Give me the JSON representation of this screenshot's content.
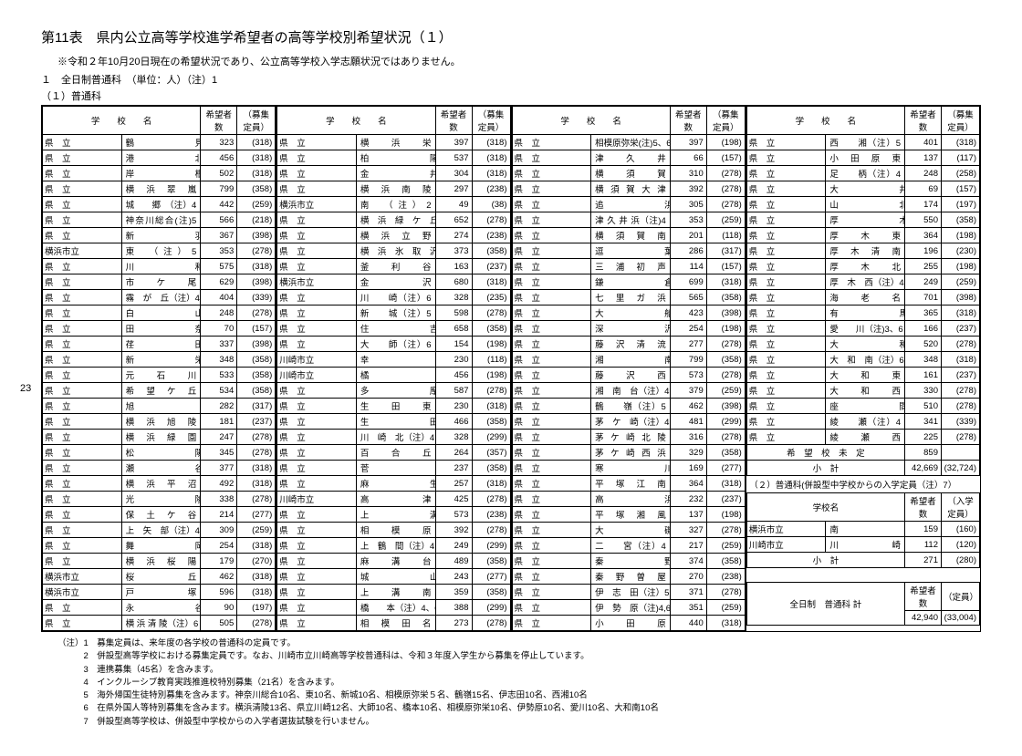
{
  "title": "第11表　県内公立高等学校進学希望者の高等学校別希望状況（１）",
  "subtitle": "※令和２年10月20日現在の希望状況であり、公立高等学校入学志願状況ではありません。",
  "section1": "１　全日制普通科　（単位：人）（注）1",
  "section2": "（１）普通科",
  "page_number": "23",
  "headers": {
    "school": "学　　校　　名",
    "applicants": "希望者数",
    "capacity": "（募集定員）"
  },
  "cols": [
    [
      {
        "p": "県　立",
        "n": "鶴　　　　　　　見",
        "a": "323",
        "c": "(318)"
      },
      {
        "p": "県　立",
        "n": "港　　　　　　　北",
        "a": "456",
        "c": "(318)"
      },
      {
        "p": "県　立",
        "n": "岸　　　　　　　根",
        "a": "502",
        "c": "(318)"
      },
      {
        "p": "県　立",
        "n": "横　浜　翠　嵐",
        "a": "799",
        "c": "(358)"
      },
      {
        "p": "県　立",
        "n": "城　　郷　（注）4",
        "a": "442",
        "c": "(259)"
      },
      {
        "p": "県　立",
        "n": "神奈川総合(注)5",
        "a": "566",
        "c": "(218)"
      },
      {
        "p": "県　立",
        "n": "新　　　　　　　羽",
        "a": "367",
        "c": "(398)"
      },
      {
        "p": "横浜市立",
        "n": "東　（注）5",
        "a": "353",
        "c": "(278)"
      },
      {
        "p": "県　立",
        "n": "川　　　　　　　和",
        "a": "575",
        "c": "(318)"
      },
      {
        "p": "県　立",
        "n": "市　　ケ　　尾",
        "a": "629",
        "c": "(398)"
      },
      {
        "p": "県　立",
        "n": "霧　が　丘（注）4",
        "a": "404",
        "c": "(339)"
      },
      {
        "p": "県　立",
        "n": "白　　　　　　　山",
        "a": "248",
        "c": "(278)"
      },
      {
        "p": "県　立",
        "n": "田　　　　　　　奈",
        "a": "70",
        "c": "(157)"
      },
      {
        "p": "県　立",
        "n": "荏　　　　　　　田",
        "a": "337",
        "c": "(398)"
      },
      {
        "p": "県　立",
        "n": "新　　　　　　　栄",
        "a": "348",
        "c": "(358)"
      },
      {
        "p": "県　立",
        "n": "元　　石　　川",
        "a": "533",
        "c": "(358)"
      },
      {
        "p": "県　立",
        "n": "希　望　ケ　丘",
        "a": "534",
        "c": "(358)"
      },
      {
        "p": "県　立",
        "n": "旭",
        "a": "282",
        "c": "(317)"
      },
      {
        "p": "県　立",
        "n": "横　浜　旭　陵",
        "a": "181",
        "c": "(237)"
      },
      {
        "p": "県　立",
        "n": "横　浜　緑　園",
        "a": "247",
        "c": "(278)"
      },
      {
        "p": "県　立",
        "n": "松　　　　　　　陽",
        "a": "345",
        "c": "(278)"
      },
      {
        "p": "県　立",
        "n": "瀬　　　　　　　谷",
        "a": "377",
        "c": "(318)"
      },
      {
        "p": "県　立",
        "n": "横　浜　平　沼",
        "a": "492",
        "c": "(318)"
      },
      {
        "p": "県　立",
        "n": "光　　　　　　　陵",
        "a": "338",
        "c": "(278)"
      },
      {
        "p": "県　立",
        "n": "保　土　ケ　谷",
        "a": "214",
        "c": "(277)"
      },
      {
        "p": "県　立",
        "n": "上　矢　部（注）4",
        "a": "309",
        "c": "(259)"
      },
      {
        "p": "県　立",
        "n": "舞　　　　　　　岡",
        "a": "254",
        "c": "(318)"
      },
      {
        "p": "県　立",
        "n": "横　浜　桜　陽",
        "a": "179",
        "c": "(270)"
      },
      {
        "p": "横浜市立",
        "n": "桜　　　　　　丘",
        "a": "462",
        "c": "(318)"
      },
      {
        "p": "横浜市立",
        "n": "戸　　　　　　塚",
        "a": "596",
        "c": "(318)"
      },
      {
        "p": "県　立",
        "n": "永　　　　　　　谷",
        "a": "90",
        "c": "(197)"
      },
      {
        "p": "県　立",
        "n": "横 浜 清 陵（注）6",
        "a": "505",
        "c": "(278)"
      }
    ],
    [
      {
        "p": "県　立",
        "n": "横　　浜　　栄",
        "a": "397",
        "c": "(318)"
      },
      {
        "p": "県　立",
        "n": "柏　　　　　　　陽",
        "a": "537",
        "c": "(318)"
      },
      {
        "p": "県　立",
        "n": "金　　　　　　　井",
        "a": "304",
        "c": "(318)"
      },
      {
        "p": "県　立",
        "n": "横　浜　南　陵",
        "a": "297",
        "c": "(238)"
      },
      {
        "p": "横浜市立",
        "n": "南　（注）2",
        "a": "49",
        "c": "(38)"
      },
      {
        "p": "県　立",
        "n": "横　浜　緑　ケ　丘",
        "a": "652",
        "c": "(278)"
      },
      {
        "p": "県　立",
        "n": "横　浜　立　野",
        "a": "274",
        "c": "(238)"
      },
      {
        "p": "県　立",
        "n": "横　浜　氷　取　沢",
        "a": "373",
        "c": "(358)"
      },
      {
        "p": "県　立",
        "n": "釜　　利　　谷",
        "a": "163",
        "c": "(237)"
      },
      {
        "p": "横浜市立",
        "n": "金　　　　　　沢",
        "a": "680",
        "c": "(318)"
      },
      {
        "p": "県　立",
        "n": "川　　崎（注）6",
        "a": "328",
        "c": "(235)"
      },
      {
        "p": "県　立",
        "n": "新　　城（注）5",
        "a": "598",
        "c": "(278)"
      },
      {
        "p": "県　立",
        "n": "住　　　　　　　吉",
        "a": "658",
        "c": "(358)"
      },
      {
        "p": "県　立",
        "n": "大　　師（注）6",
        "a": "154",
        "c": "(198)"
      },
      {
        "p": "川崎市立",
        "n": "幸",
        "a": "230",
        "c": "(118)"
      },
      {
        "p": "川崎市立",
        "n": "橘",
        "a": "456",
        "c": "(198)"
      },
      {
        "p": "県　立",
        "n": "多　　　　　　　摩",
        "a": "587",
        "c": "(278)"
      },
      {
        "p": "県　立",
        "n": "生　　田　　東",
        "a": "230",
        "c": "(318)"
      },
      {
        "p": "県　立",
        "n": "生　　　　　　　田",
        "a": "466",
        "c": "(358)"
      },
      {
        "p": "県　立",
        "n": "川　崎　北（注）4",
        "a": "328",
        "c": "(299)"
      },
      {
        "p": "県　立",
        "n": "百　　合　　丘",
        "a": "264",
        "c": "(357)"
      },
      {
        "p": "県　立",
        "n": "菅",
        "a": "237",
        "c": "(358)"
      },
      {
        "p": "県　立",
        "n": "麻　　　　　　　生",
        "a": "257",
        "c": "(318)"
      },
      {
        "p": "川崎市立",
        "n": "高　　　　　　津",
        "a": "425",
        "c": "(278)"
      },
      {
        "p": "県　立",
        "n": "上　　　　　　　溝",
        "a": "573",
        "c": "(238)"
      },
      {
        "p": "県　立",
        "n": "相　　模　　原",
        "a": "392",
        "c": "(278)"
      },
      {
        "p": "県　立",
        "n": "上　鶴　間（注）4",
        "a": "249",
        "c": "(299)"
      },
      {
        "p": "県　立",
        "n": "麻　　溝　　台",
        "a": "489",
        "c": "(358)"
      },
      {
        "p": "県　立",
        "n": "城　　　　　　　山",
        "a": "243",
        "c": "(277)"
      },
      {
        "p": "県　立",
        "n": "上　　溝　　南",
        "a": "359",
        "c": "(358)"
      },
      {
        "p": "県　立",
        "n": "橋　　本（注）4、6",
        "a": "388",
        "c": "(299)"
      },
      {
        "p": "県　立",
        "n": "相　模　田　名",
        "a": "273",
        "c": "(278)"
      }
    ],
    [
      {
        "p": "県　立",
        "n": "相模原弥栄(注)5、6",
        "a": "397",
        "c": "(198)"
      },
      {
        "p": "県　立",
        "n": "津　　久　　井",
        "a": "66",
        "c": "(157)"
      },
      {
        "p": "県　立",
        "n": "横　　須　　賀",
        "a": "310",
        "c": "(278)"
      },
      {
        "p": "県　立",
        "n": "横 須 賀 大 津",
        "a": "392",
        "c": "(278)"
      },
      {
        "p": "県　立",
        "n": "追　　　　　　　浜",
        "a": "305",
        "c": "(278)"
      },
      {
        "p": "県　立",
        "n": "津 久 井 浜（注)4",
        "a": "353",
        "c": "(259)"
      },
      {
        "p": "県　立",
        "n": "横　須　賀　南",
        "a": "201",
        "c": "(118)"
      },
      {
        "p": "県　立",
        "n": "逗　　　　　　　葉",
        "a": "286",
        "c": "(317)"
      },
      {
        "p": "県　立",
        "n": "三　浦　初　声",
        "a": "114",
        "c": "(157)"
      },
      {
        "p": "県　立",
        "n": "鎌　　　　　　　倉",
        "a": "699",
        "c": "(318)"
      },
      {
        "p": "県　立",
        "n": "七　里　ガ　浜",
        "a": "565",
        "c": "(358)"
      },
      {
        "p": "県　立",
        "n": "大　　　　　　　船",
        "a": "423",
        "c": "(398)"
      },
      {
        "p": "県　立",
        "n": "深　　　　　　　沢",
        "a": "254",
        "c": "(198)"
      },
      {
        "p": "県　立",
        "n": "藤　沢　清　流",
        "a": "277",
        "c": "(278)"
      },
      {
        "p": "県　立",
        "n": "湘　　　　　　　南",
        "a": "799",
        "c": "(358)"
      },
      {
        "p": "県　立",
        "n": "藤　　沢　　西",
        "a": "573",
        "c": "(278)"
      },
      {
        "p": "県　立",
        "n": "湘　南　台（注）4",
        "a": "379",
        "c": "(259)"
      },
      {
        "p": "県　立",
        "n": "鶴　　嶺（注）5",
        "a": "462",
        "c": "(398)"
      },
      {
        "p": "県　立",
        "n": "茅　ケ　崎（注）4",
        "a": "481",
        "c": "(299)"
      },
      {
        "p": "県　立",
        "n": "茅 ケ 崎 北 陵",
        "a": "316",
        "c": "(278)"
      },
      {
        "p": "県　立",
        "n": "茅 ケ 崎 西 浜",
        "a": "329",
        "c": "(358)"
      },
      {
        "p": "県　立",
        "n": "寒　　　　　　　川",
        "a": "169",
        "c": "(277)"
      },
      {
        "p": "県　立",
        "n": "平　塚　江　南",
        "a": "364",
        "c": "(318)"
      },
      {
        "p": "県　立",
        "n": "高　　　　　　　浜",
        "a": "232",
        "c": "(237)"
      },
      {
        "p": "県　立",
        "n": "平　塚　湘　風",
        "a": "137",
        "c": "(198)"
      },
      {
        "p": "県　立",
        "n": "大　　　　　　　磯",
        "a": "327",
        "c": "(278)"
      },
      {
        "p": "県　立",
        "n": "二　　宮（注）4",
        "a": "217",
        "c": "(259)"
      },
      {
        "p": "県　立",
        "n": "秦　　　　　　　野",
        "a": "374",
        "c": "(358)"
      },
      {
        "p": "県　立",
        "n": "秦　野　曽　屋",
        "a": "270",
        "c": "(238)"
      },
      {
        "p": "県　立",
        "n": "伊　志　田（注）5",
        "a": "371",
        "c": "(278)"
      },
      {
        "p": "県　立",
        "n": "伊　勢　原（注)4,6",
        "a": "351",
        "c": "(259)"
      },
      {
        "p": "県　立",
        "n": "小　　田　　原",
        "a": "440",
        "c": "(318)"
      }
    ],
    [
      {
        "p": "県　立",
        "n": "西　　湘（注）5",
        "a": "401",
        "c": "(318)"
      },
      {
        "p": "県　立",
        "n": "小　田　原　東",
        "a": "137",
        "c": "(117)"
      },
      {
        "p": "県　立",
        "n": "足　　柄（注）4",
        "a": "248",
        "c": "(258)"
      },
      {
        "p": "県　立",
        "n": "大　　　　　　　井",
        "a": "69",
        "c": "(157)"
      },
      {
        "p": "県　立",
        "n": "山　　　　　　　北",
        "a": "174",
        "c": "(197)"
      },
      {
        "p": "県　立",
        "n": "厚　　　　　　　木",
        "a": "550",
        "c": "(358)"
      },
      {
        "p": "県　立",
        "n": "厚　　木　　東",
        "a": "364",
        "c": "(198)"
      },
      {
        "p": "県　立",
        "n": "厚　木　清　南",
        "a": "196",
        "c": "(230)"
      },
      {
        "p": "県　立",
        "n": "厚　　木　　北",
        "a": "255",
        "c": "(198)"
      },
      {
        "p": "県　立",
        "n": "厚　木　西（注）4",
        "a": "249",
        "c": "(259)"
      },
      {
        "p": "県　立",
        "n": "海　　老　　名",
        "a": "701",
        "c": "(398)"
      },
      {
        "p": "県　立",
        "n": "有　　　　　　　馬",
        "a": "365",
        "c": "(318)"
      },
      {
        "p": "県　立",
        "n": "愛　　川（注)3、6",
        "a": "166",
        "c": "(237)"
      },
      {
        "p": "県　立",
        "n": "大　　　　　　　和",
        "a": "520",
        "c": "(278)"
      },
      {
        "p": "県　立",
        "n": "大　和　南（注）6",
        "a": "348",
        "c": "(318)"
      },
      {
        "p": "県　立",
        "n": "大　　和　　東",
        "a": "161",
        "c": "(237)"
      },
      {
        "p": "県　立",
        "n": "大　　和　　西",
        "a": "330",
        "c": "(278)"
      },
      {
        "p": "県　立",
        "n": "座　　　　　　　間",
        "a": "510",
        "c": "(278)"
      },
      {
        "p": "県　立",
        "n": "綾　　瀬（注）4",
        "a": "341",
        "c": "(339)"
      },
      {
        "p": "県　立",
        "n": "綾　　瀬　　西",
        "a": "225",
        "c": "(278)"
      }
    ]
  ],
  "undecided": {
    "label": "希　望　校　未　定",
    "value": "859"
  },
  "subtotal1": {
    "label": "小　計",
    "a": "42,669",
    "c": "(32,724)"
  },
  "section3": "（２）普通科(併設型中学校からの入学定員（注）7）",
  "headers2": {
    "school": "学校名",
    "applicants": "希望者数",
    "capacity": "（入学定員）"
  },
  "sub_rows": [
    {
      "p": "横浜市立",
      "n": "南",
      "a": "159",
      "c": "(160)"
    },
    {
      "p": "川崎市立",
      "n": "川　　　　　　崎",
      "a": "112",
      "c": "(120)"
    }
  ],
  "subtotal2": {
    "label": "小　計",
    "a": "271",
    "c": "(280)"
  },
  "grand_total": {
    "label": "全日制　普通科 計",
    "ah": "希望者数",
    "ch": "（定員）",
    "a": "42,940",
    "c": "(33,004)"
  },
  "footnotes": [
    "（注）1　募集定員は、来年度の各学校の普通科の定員です。",
    "　　　2　併設型高等学校における募集定員です。なお、川崎市立川崎高等学校普通科は、令和３年度入学生から募集を停止しています。",
    "　　　3　連携募集（45名）を含みます。",
    "　　　4　インクルーシブ教育実践推進校特別募集（21名）を含みます。",
    "　　　5　海外帰国生徒特別募集を含みます。神奈川総合10名、東10名、新城10名、相模原弥栄５名、鶴嶺15名、伊志田10名、西湘10名",
    "　　　6　在県外国人等特別募集を含みます。横浜清陵13名、県立川崎12名、大師10名、橋本10名、相模原弥栄10名、伊勢原10名、愛川10名、大和南10名",
    "　　　7　併設型高等学校は、併設型中学校からの入学者選抜試験を行いません。"
  ]
}
